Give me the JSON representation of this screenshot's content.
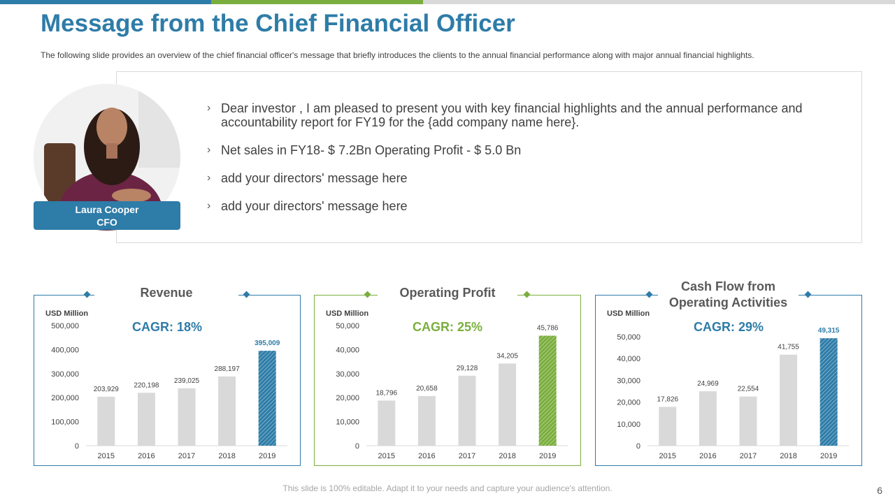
{
  "colors": {
    "accent_blue": "#2E7CA8",
    "accent_green": "#7AAE3E",
    "bar_gray": "#D9D9D9"
  },
  "header": {
    "title": "Message from the Chief Financial Officer",
    "subtitle": "The following slide provides  an overview  of the chief financial  officer's message that briefly  introduces the clients to the annual  financial  performance  along with major annual financial highlights."
  },
  "message": {
    "bullets": [
      "Dear investor , I am pleased to present you with key financial highlights and the annual performance and accountability report for FY19 for the {add company name here}.",
      "Net sales in FY18- $ 7.2Bn Operating Profit - $ 5.0 Bn",
      "add your directors' message here",
      "add your directors' message here"
    ],
    "bullet_icon": "chevron-right-icon"
  },
  "profile": {
    "name": "Laura Cooper",
    "role": "CFO"
  },
  "chart_data": [
    {
      "type": "bar",
      "title": "Revenue",
      "ylabel": "USD Million",
      "annotation": "CAGR: 18%",
      "categories": [
        "2015",
        "2016",
        "2017",
        "2018",
        "2019"
      ],
      "values": [
        203929,
        220198,
        239025,
        288197,
        395009
      ],
      "value_labels": [
        "203,929",
        "220,198",
        "239,025",
        "288,197",
        "395,009"
      ],
      "ylim": [
        0,
        500000
      ],
      "yticks": [
        0,
        100000,
        200000,
        300000,
        400000,
        500000
      ],
      "ytick_labels": [
        "0",
        "100,000",
        "200,000",
        "300,000",
        "400,000",
        "500,000"
      ],
      "highlight_color": "#2E7CA8"
    },
    {
      "type": "bar",
      "title": "Operating Profit",
      "ylabel": "USD Million",
      "annotation": "CAGR: 25%",
      "categories": [
        "2015",
        "2016",
        "2017",
        "2018",
        "2019"
      ],
      "values": [
        18796,
        20658,
        29128,
        34205,
        45786
      ],
      "value_labels": [
        "18,796",
        "20,658",
        "29,128",
        "34,205",
        "45,786"
      ],
      "ylim": [
        0,
        50000
      ],
      "yticks": [
        0,
        10000,
        20000,
        30000,
        40000,
        50000
      ],
      "ytick_labels": [
        "0",
        "10,000",
        "20,000",
        "30,000",
        "40,000",
        "50,000"
      ],
      "highlight_color": "#7AAE3E"
    },
    {
      "type": "bar",
      "title": "Cash Flow from Operating Activities",
      "ylabel": "USD Million",
      "annotation": "CAGR: 29%",
      "categories": [
        "2015",
        "2016",
        "2017",
        "2018",
        "2019"
      ],
      "values": [
        17826,
        24969,
        22554,
        41755,
        49315
      ],
      "value_labels": [
        "17,826",
        "24,969",
        "22,554",
        "41,755",
        "49,315"
      ],
      "ylim": [
        0,
        50000
      ],
      "yticks": [
        0,
        10000,
        20000,
        30000,
        40000,
        50000
      ],
      "ytick_labels": [
        "0",
        "10,000",
        "20,000",
        "30,000",
        "40,000",
        "50,000"
      ],
      "highlight_color": "#2E7CA8"
    }
  ],
  "footer": {
    "note": "This slide is 100% editable. Adapt it to your needs and capture your audience's attention.",
    "page_number": "6"
  }
}
